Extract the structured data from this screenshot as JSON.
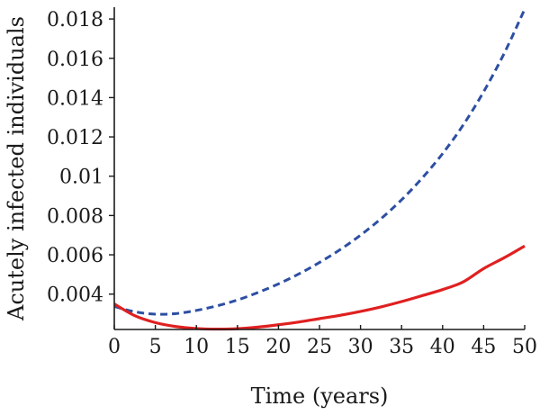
{
  "chart_data": {
    "type": "line",
    "title": "",
    "xlabel": "Time (years)",
    "ylabel": "Acutely infected individuals",
    "xlim": [
      0,
      50
    ],
    "ylim": [
      0.0022,
      0.0186
    ],
    "x_ticks": [
      0,
      5,
      10,
      15,
      20,
      25,
      30,
      35,
      40,
      45,
      50
    ],
    "x_tick_labels": [
      "0",
      "5",
      "10",
      "15",
      "20",
      "25",
      "30",
      "35",
      "40",
      "45",
      "50"
    ],
    "y_ticks": [
      0.004,
      0.006,
      0.008,
      0.01,
      0.012,
      0.014,
      0.016,
      0.018
    ],
    "y_tick_labels": [
      "0.004",
      "0.006",
      "0.008",
      "0.01",
      "0.012",
      "0.014",
      "0.016",
      "0.018"
    ],
    "grid": false,
    "legend": "none",
    "series": [
      {
        "style": "dashed",
        "color": "#2d4fa3",
        "x": [
          0,
          2.5,
          5,
          7.5,
          10,
          12.5,
          15,
          17.5,
          20,
          22.5,
          25,
          27.5,
          30,
          32.5,
          35,
          37.5,
          40,
          42.5,
          45,
          47.5,
          50
        ],
        "y": [
          0.00337,
          0.0031,
          0.00298,
          0.00301,
          0.00317,
          0.0034,
          0.0037,
          0.00408,
          0.00452,
          0.00503,
          0.00561,
          0.00626,
          0.007,
          0.00784,
          0.0088,
          0.0099,
          0.01115,
          0.0126,
          0.0143,
          0.01625,
          0.0185
        ]
      },
      {
        "style": "solid",
        "color": "#e02020",
        "x": [
          0,
          2.5,
          5,
          7.5,
          10,
          12.5,
          15,
          17.5,
          20,
          22.5,
          25,
          27.5,
          30,
          32.5,
          35,
          37.5,
          40,
          42.5,
          45,
          47.5,
          50
        ],
        "y": [
          0.0035,
          0.0029,
          0.00255,
          0.00235,
          0.00225,
          0.00222,
          0.00224,
          0.00232,
          0.00244,
          0.00258,
          0.00275,
          0.00292,
          0.00312,
          0.00335,
          0.00362,
          0.00392,
          0.00423,
          0.00462,
          0.0053,
          0.00585,
          0.00645
        ]
      }
    ]
  }
}
